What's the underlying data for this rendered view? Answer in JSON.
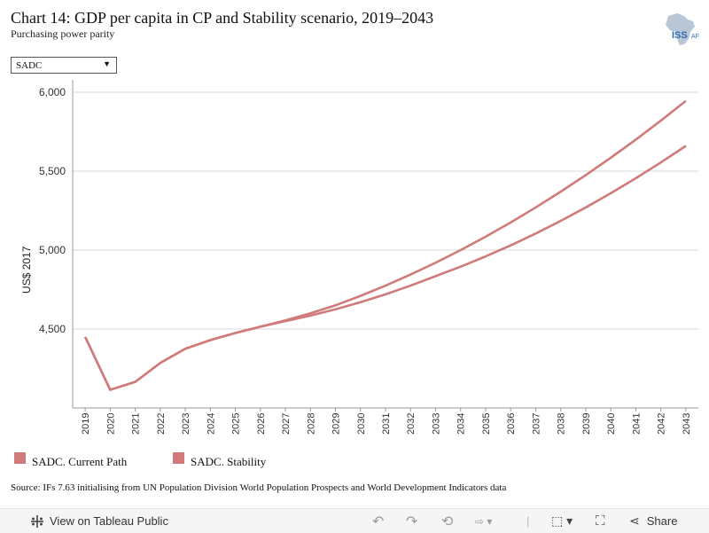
{
  "header": {
    "title": "Chart 14: GDP per capita in CP and Stability scenario, 2019–2043",
    "subtitle": "Purchasing power parity",
    "logo_text": "ISS",
    "logo_suffix": "AF"
  },
  "filter": {
    "selected": "SADC"
  },
  "chart_data": {
    "type": "line",
    "title": "Chart 14: GDP per capita in CP and Stability scenario, 2019–2043",
    "subtitle": "Purchasing power parity",
    "xlabel": "",
    "ylabel": "US$ 2017",
    "ylim": [
      4000,
      6000
    ],
    "yticks": [
      4500,
      5000,
      5500,
      6000
    ],
    "ytick_labels": [
      "4,500",
      "5,000",
      "5,500",
      "6,000"
    ],
    "grid": true,
    "legend_position": "bottom",
    "x": [
      2019,
      2020,
      2021,
      2022,
      2023,
      2024,
      2025,
      2026,
      2027,
      2028,
      2029,
      2030,
      2031,
      2032,
      2033,
      2034,
      2035,
      2036,
      2037,
      2038,
      2039,
      2040,
      2041,
      2042,
      2043
    ],
    "series": [
      {
        "name": "SADC. Current Path",
        "color": "#d07a7a",
        "values": [
          4450,
          4115,
          4165,
          4285,
          4375,
          4430,
          4475,
          4515,
          4550,
          4585,
          4625,
          4670,
          4720,
          4775,
          4835,
          4895,
          4960,
          5030,
          5105,
          5185,
          5270,
          5360,
          5455,
          5555,
          5660
        ]
      },
      {
        "name": "SADC. Stability",
        "color": "#d07a7a",
        "values": [
          4450,
          4115,
          4165,
          4285,
          4375,
          4430,
          4475,
          4515,
          4555,
          4600,
          4650,
          4710,
          4775,
          4845,
          4920,
          5000,
          5085,
          5175,
          5270,
          5370,
          5475,
          5585,
          5700,
          5820,
          5945
        ]
      }
    ]
  },
  "source": "Source: IFs 7.63 initialising from UN Population Division World Population Prospects and World Development Indicators data",
  "toolbar": {
    "view_label": "View on Tableau Public",
    "share_label": "Share",
    "icons": [
      "tableau-icon",
      "undo-icon",
      "redo-icon",
      "revert-icon",
      "refresh-icon",
      "download-icon",
      "fullscreen-icon",
      "share-icon"
    ]
  }
}
